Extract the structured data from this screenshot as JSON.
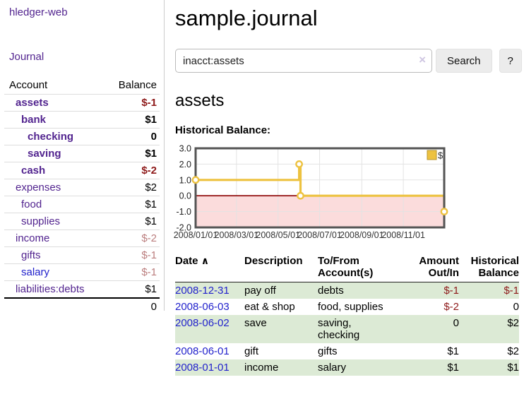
{
  "app_title": "hledger-web",
  "sidebar": {
    "journal_link": "Journal",
    "account_header": "Account",
    "balance_header": "Balance",
    "accounts": [
      {
        "name": "assets",
        "depth": 1,
        "bold": true,
        "balance": "$-1"
      },
      {
        "name": "bank",
        "depth": 2,
        "bold": true,
        "balance": "$1"
      },
      {
        "name": "checking",
        "depth": 3,
        "bold": true,
        "balance": "0"
      },
      {
        "name": "saving",
        "depth": 3,
        "bold": true,
        "balance": "$1"
      },
      {
        "name": "cash",
        "depth": 2,
        "bold": true,
        "balance": "$-2"
      },
      {
        "name": "expenses",
        "depth": 1,
        "bold": false,
        "balance": "$2"
      },
      {
        "name": "food",
        "depth": 2,
        "bold": false,
        "balance": "$1"
      },
      {
        "name": "supplies",
        "depth": 2,
        "bold": false,
        "balance": "$1"
      },
      {
        "name": "income",
        "depth": 1,
        "bold": false,
        "balance": "$-2"
      },
      {
        "name": "gifts",
        "depth": 2,
        "bold": false,
        "balance": "$-1"
      },
      {
        "name": "salary",
        "depth": 2,
        "bold": false,
        "balance": "$-1",
        "link_color": "blue"
      },
      {
        "name": "liabilities:debts",
        "depth": 1,
        "bold": false,
        "balance": "$1"
      }
    ],
    "total": "0"
  },
  "main": {
    "title": "sample.journal",
    "search": {
      "query": "inacct:assets",
      "clear_icon": "×",
      "button": "Search",
      "help_button": "?"
    },
    "account_heading": "assets",
    "chart_label": "Historical Balance:"
  },
  "chart_data": {
    "type": "line",
    "step": true,
    "title": "Historical Balance",
    "series": [
      {
        "name": "$",
        "color": "#edc240",
        "points": [
          [
            "2008-01-01",
            1
          ],
          [
            "2008-06-01",
            2
          ],
          [
            "2008-06-03",
            0
          ],
          [
            "2008-12-31",
            -1
          ]
        ]
      }
    ],
    "x_range": [
      "2008-01-01",
      "2008-12-31"
    ],
    "ylim": [
      -2,
      3
    ],
    "y_ticks": [
      "3.0",
      "2.0",
      "1.0",
      "0.0",
      "-1.0",
      "-2.0"
    ],
    "x_tick_dates": [
      "2008-01-01",
      "2008-03-01",
      "2008-05-01",
      "2008-07-01",
      "2008-09-01",
      "2008-11-01"
    ],
    "x_tick_labels": [
      "2008/01/01",
      "2008/03/01",
      "2008/05/01",
      "2008/07/01",
      "2008/09/01",
      "2008/11/01"
    ],
    "legend": {
      "label": "$",
      "position": "top-right"
    },
    "grid": true,
    "negative_fill": "#fbdcdc",
    "zero_line_color": "#8b0000",
    "line_color": "#edc240",
    "border_color": "#545454"
  },
  "register": {
    "headers": {
      "date": "Date",
      "sort_icon": "∧",
      "description": "Description",
      "accounts": "To/From\nAccount(s)",
      "amount": "Amount\nOut/In",
      "balance": "Historical\nBalance"
    },
    "rows": [
      {
        "date": "2008-12-31",
        "description": "pay off",
        "accounts": "debts",
        "amount": "$-1",
        "balance": "$-1"
      },
      {
        "date": "2008-06-03",
        "description": "eat & shop",
        "accounts": "food, supplies",
        "amount": "$-2",
        "balance": "0"
      },
      {
        "date": "2008-06-02",
        "description": "save",
        "accounts": "saving,\nchecking",
        "amount": "0",
        "balance": "$2"
      },
      {
        "date": "2008-06-01",
        "description": "gift",
        "accounts": "gifts",
        "amount": "$1",
        "balance": "$2"
      },
      {
        "date": "2008-01-01",
        "description": "income",
        "accounts": "salary",
        "amount": "$1",
        "balance": "$1"
      }
    ]
  },
  "colors": {
    "link_purple": "#52248f",
    "link_blue": "#2222cc",
    "negative": "#8e1a1a",
    "negative_soft": "#bb7e7e",
    "row_stripe": "#dcead5",
    "chart_gold": "#edc240"
  }
}
